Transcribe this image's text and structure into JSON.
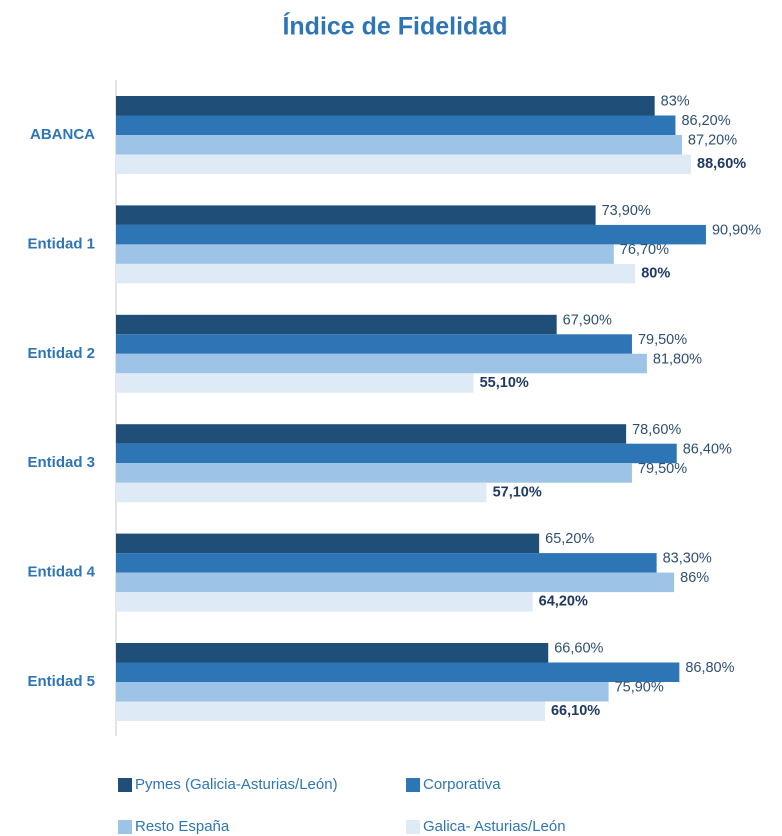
{
  "chart_data": {
    "type": "barh",
    "title": "Índice de Fidelidad",
    "categories": [
      "ABANCA",
      "Entidad 1",
      "Entidad 2",
      "Entidad 3",
      "Entidad 4",
      "Entidad 5"
    ],
    "xlim": [
      0,
      100
    ],
    "series": [
      {
        "name": "Pymes (Galicia-Asturias/León)",
        "color": "#1f4e79",
        "values": [
          83,
          73.9,
          67.9,
          78.6,
          65.2,
          66.6
        ],
        "value_labels": [
          "83%",
          "73,90%",
          "67,90%",
          "78,60%",
          "65,20%",
          "66,60%"
        ]
      },
      {
        "name": "Corporativa",
        "color": "#2e75b6",
        "values": [
          86.2,
          90.9,
          79.5,
          86.4,
          83.3,
          86.8
        ],
        "value_labels": [
          "86,20%",
          "90,90%",
          "79,50%",
          "86,40%",
          "83,30%",
          "86,80%"
        ]
      },
      {
        "name": "Resto España",
        "color": "#9dc3e6",
        "values": [
          87.2,
          76.7,
          81.8,
          79.5,
          86,
          75.9
        ],
        "value_labels": [
          "87,20%",
          "76,70%",
          "81,80%",
          "79,50%",
          "86%",
          "75,90%"
        ]
      },
      {
        "name": "Galica- Asturias/León",
        "color": "#deebf7",
        "values": [
          88.6,
          80,
          55.1,
          57.1,
          64.2,
          66.1
        ],
        "value_labels": [
          "88,60%",
          "80%",
          "55,10%",
          "57,10%",
          "64,20%",
          "66,10%"
        ]
      }
    ]
  }
}
